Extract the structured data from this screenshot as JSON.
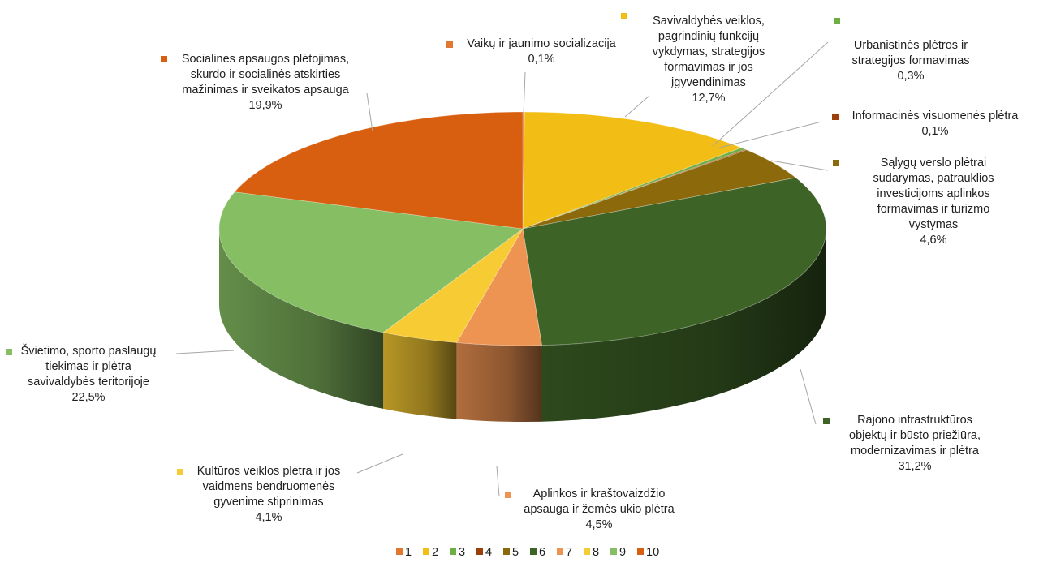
{
  "chart_data": {
    "type": "pie",
    "three_d": true,
    "legend_position": "bottom",
    "slices": [
      {
        "id": "1",
        "name": "Vaikų ir jaunimo socializacija",
        "value": 0.1,
        "color": "#E2772F",
        "label_lines": [
          "Vaikų ir jaunimo socializacija",
          "0,1%"
        ]
      },
      {
        "id": "2",
        "name": "Savivaldybės veiklos, pagrindinių funkcijų vykdymas, strategijos formavimas ir jos įgyvendinimas",
        "value": 12.7,
        "color": "#F2BE15",
        "label_lines": [
          "Savivaldybės veiklos,",
          "pagrindinių funkcijų",
          "vykdymas, strategijos",
          "formavimas ir jos",
          "įgyvendinimas",
          "12,7%"
        ]
      },
      {
        "id": "3",
        "name": "Urbanistinės plėtros ir strategijos formavimas",
        "value": 0.3,
        "color": "#6DAE45",
        "label_lines": [
          "Urbanistinės plėtros ir",
          "strategijos formavimas",
          "0,3%"
        ]
      },
      {
        "id": "4",
        "name": "Informacinės visuomenės plėtra",
        "value": 0.1,
        "color": "#9B3F0B",
        "label_lines": [
          "Informacinės visuomenės plėtra",
          "0,1%"
        ]
      },
      {
        "id": "5",
        "name": "Sąlygų verslo plėtrai sudarymas, patrauklios investicijoms aplinkos formavimas ir turizmo vystymas",
        "value": 4.6,
        "color": "#8C6A0C",
        "label_lines": [
          "Sąlygų verslo plėtrai",
          "sudarymas, patrauklios",
          "investicijoms aplinkos",
          "formavimas ir turizmo",
          "vystymas",
          "4,6%"
        ]
      },
      {
        "id": "6",
        "name": "Rajono infrastruktūros objektų ir būsto priežiūra, modernizavimas ir plėtra",
        "value": 31.2,
        "color": "#3D6326",
        "label_lines": [
          "Rajono infrastruktūros",
          "objektų ir būsto priežiūra,",
          "modernizavimas ir plėtra",
          "31,2%"
        ]
      },
      {
        "id": "7",
        "name": "Aplinkos ir kraštovaizdžio apsauga ir žemės ūkio plėtra",
        "value": 4.5,
        "color": "#EE9452",
        "label_lines": [
          "Aplinkos ir kraštovaizdžio",
          "apsauga ir žemės ūkio plėtra",
          "4,5%"
        ]
      },
      {
        "id": "8",
        "name": "Kultūros veiklos plėtra ir jos vaidmens bendruomenės gyvenime stiprinimas",
        "value": 4.1,
        "color": "#F7CB33",
        "label_lines": [
          "Kultūros veiklos plėtra ir jos",
          "vaidmens bendruomenės",
          "gyvenime stiprinimas",
          "4,1%"
        ]
      },
      {
        "id": "9",
        "name": "Švietimo, sporto paslaugų tiekimas ir plėtra savivaldybės teritorijoje",
        "value": 22.5,
        "color": "#86BF63",
        "label_lines": [
          "Švietimo, sporto paslaugų",
          "tiekimas ir plėtra",
          "savivaldybės teritorijoje",
          "22,5%"
        ]
      },
      {
        "id": "10",
        "name": "Socialinės apsaugos plėtojimas, skurdo ir socialinės atskirties mažinimas ir sveikatos apsauga",
        "value": 19.9,
        "color": "#D85F10",
        "label_lines": [
          "Socialinės apsaugos plėtojimas,",
          "skurdo ir socialinės atskirties",
          "mažinimas ir sveikatos apsauga",
          "19,9%"
        ]
      }
    ],
    "legend": [
      "1",
      "2",
      "3",
      "4",
      "5",
      "6",
      "7",
      "8",
      "9",
      "10"
    ]
  }
}
